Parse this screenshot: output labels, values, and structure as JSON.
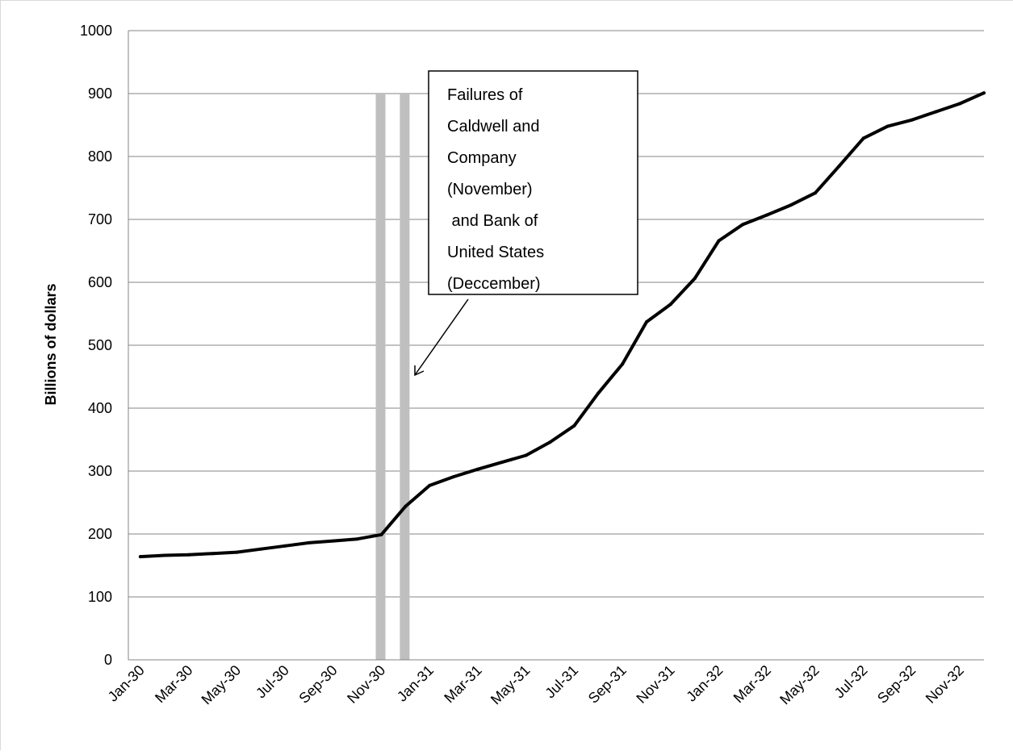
{
  "chart_data": {
    "type": "line",
    "ylabel": "Billions of dollars",
    "xlabel": "",
    "ylim": [
      0,
      1000
    ],
    "yticks": [
      0,
      100,
      200,
      300,
      400,
      500,
      600,
      700,
      800,
      900,
      1000
    ],
    "grid": "horizontal",
    "x": [
      "Jan-30",
      "Feb-30",
      "Mar-30",
      "Apr-30",
      "May-30",
      "Jun-30",
      "Jul-30",
      "Aug-30",
      "Sep-30",
      "Oct-30",
      "Nov-30",
      "Dec-30",
      "Jan-31",
      "Feb-31",
      "Mar-31",
      "Apr-31",
      "May-31",
      "Jun-31",
      "Jul-31",
      "Aug-31",
      "Sep-31",
      "Oct-31",
      "Nov-31",
      "Dec-31",
      "Jan-32",
      "Feb-32",
      "Mar-32",
      "Apr-32",
      "May-32",
      "Jun-32",
      "Jul-32",
      "Aug-32",
      "Sep-32",
      "Oct-32",
      "Nov-32",
      "Dec-32"
    ],
    "xtick_labels": [
      "Jan-30",
      "Mar-30",
      "May-30",
      "Jul-30",
      "Sep-30",
      "Nov-30",
      "Jan-31",
      "Mar-31",
      "May-31",
      "Jul-31",
      "Sep-31",
      "Nov-31",
      "Jan-32",
      "Mar-32",
      "May-32",
      "Jul-32",
      "Sep-32",
      "Nov-32"
    ],
    "series": [
      {
        "color": "#000000",
        "values": [
          164,
          166,
          167,
          169,
          171,
          176,
          181,
          186,
          189,
          192,
          199,
          244,
          277,
          291,
          303,
          314,
          325,
          346,
          372,
          424,
          470,
          537,
          565,
          606,
          666,
          692,
          707,
          723,
          742,
          785,
          829,
          848,
          858,
          871,
          884,
          901
        ]
      }
    ],
    "highlight_bars": [
      {
        "x": "Nov-30",
        "top": 900,
        "color": "#bfbfbf"
      },
      {
        "x": "Dec-30",
        "top": 900,
        "color": "#bfbfbf"
      }
    ],
    "annotation": {
      "lines": [
        "Failures of",
        "Caldwell and",
        "Company",
        "(November)",
        " and Bank of",
        "United States",
        "(Deccember)"
      ],
      "points_to": "Dec-30"
    }
  }
}
